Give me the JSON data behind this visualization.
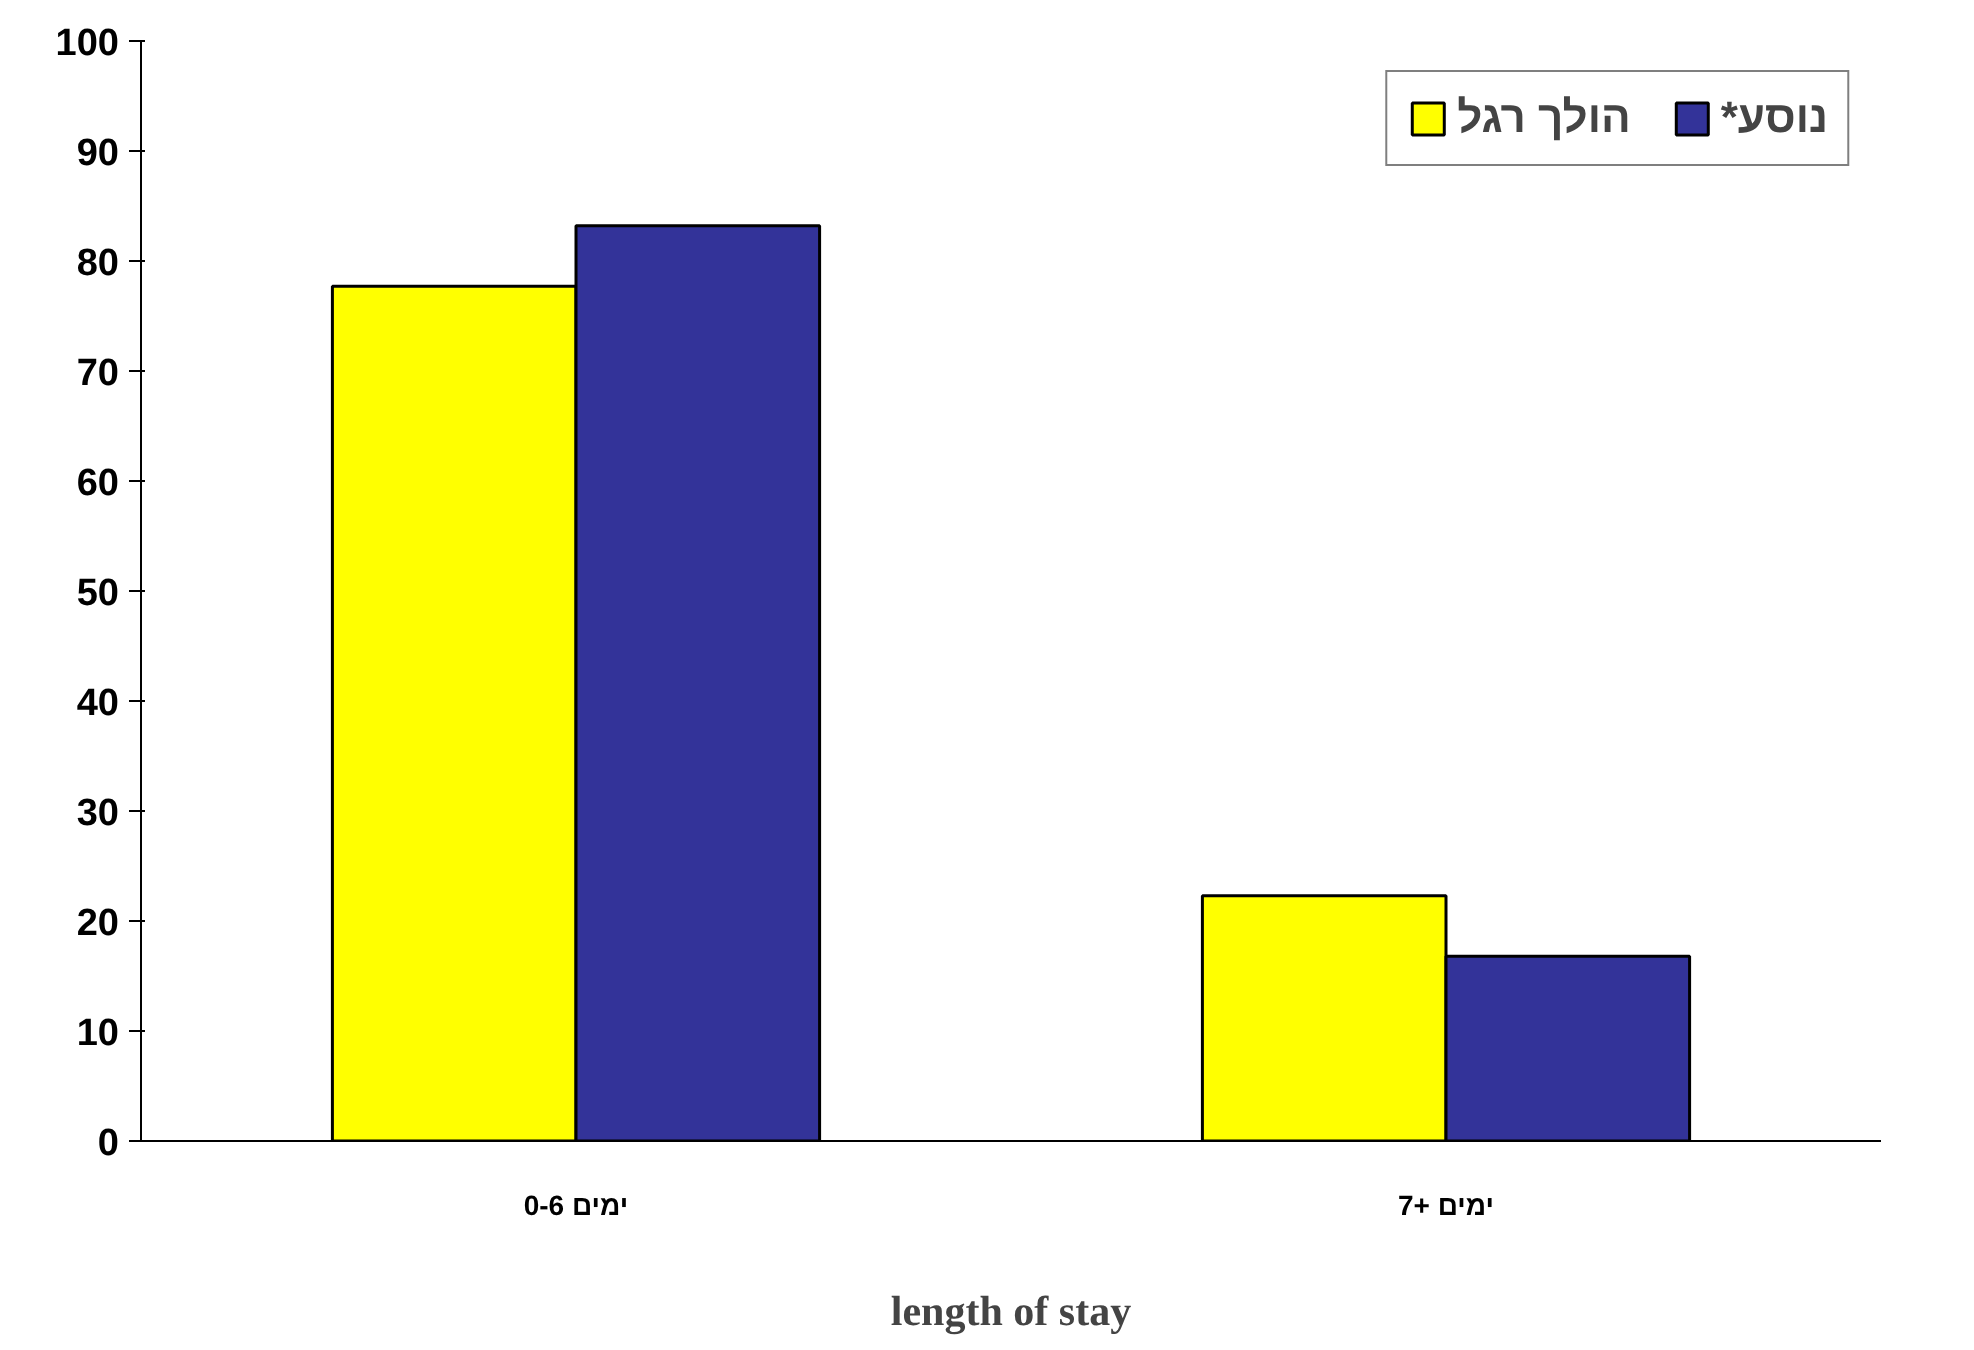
{
  "chart_data": {
    "type": "bar",
    "xlabel": "length of stay",
    "categories": [
      "0-6 ימים",
      "7+ ימים"
    ],
    "series": [
      {
        "name": "הולך רגל",
        "color": "#ffff00",
        "values": [
          77.7,
          22.3
        ]
      },
      {
        "name": "*נוסע",
        "color": "#333399",
        "values": [
          83.2,
          16.8
        ]
      }
    ],
    "ylim": [
      0,
      100
    ],
    "yticks": [
      0,
      10,
      20,
      30,
      40,
      50,
      60,
      70,
      80,
      90,
      100
    ],
    "grid": false,
    "legend": "top right"
  }
}
